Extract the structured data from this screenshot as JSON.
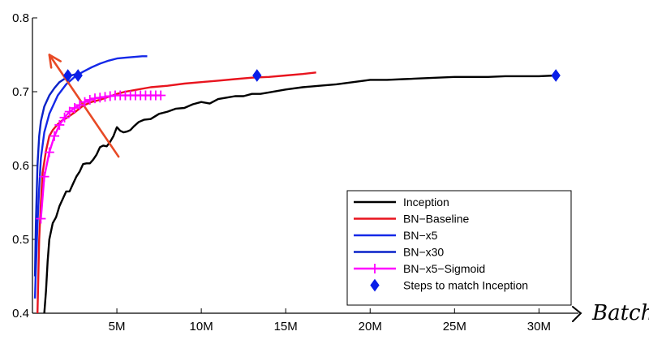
{
  "chart_data": {
    "type": "line",
    "xlim": [
      0,
      32
    ],
    "ylim": [
      0.4,
      0.8
    ],
    "x_unit_suffix": "M",
    "xticks": [
      5,
      10,
      15,
      20,
      25,
      30
    ],
    "xtick_labels": [
      "5M",
      "10M",
      "15M",
      "20M",
      "25M",
      "30M"
    ],
    "yticks": [
      0.4,
      0.5,
      0.6,
      0.7,
      0.8
    ],
    "ytick_labels": [
      "0.4",
      "0.5",
      "0.6",
      "0.7",
      "0.8"
    ],
    "x_axis_annotation": "Batch",
    "legend_position": "bottom-right",
    "series": [
      {
        "name": "Inception",
        "color": "#000000",
        "marker": "none",
        "x": [
          0.7,
          0.8,
          0.9,
          1.0,
          1.2,
          1.4,
          1.6,
          1.8,
          2.0,
          2.2,
          2.4,
          2.6,
          2.8,
          3.0,
          3.2,
          3.4,
          3.6,
          3.8,
          4.0,
          4.2,
          4.4,
          4.6,
          4.8,
          5.0,
          5.2,
          5.4,
          5.6,
          5.8,
          6.0,
          6.3,
          6.6,
          7.0,
          7.5,
          8.0,
          8.5,
          9.0,
          9.5,
          10.0,
          10.5,
          11.0,
          11.5,
          12.0,
          12.5,
          13.0,
          13.5,
          14.0,
          15.0,
          16.0,
          17.0,
          18.0,
          19.0,
          20.0,
          21.0,
          22.0,
          23.0,
          24.0,
          25.0,
          26.0,
          27.0,
          28.0,
          29.0,
          30.0,
          31.0
        ],
        "y": [
          0.4,
          0.43,
          0.47,
          0.5,
          0.522,
          0.53,
          0.545,
          0.555,
          0.565,
          0.565,
          0.575,
          0.585,
          0.592,
          0.602,
          0.603,
          0.603,
          0.608,
          0.615,
          0.625,
          0.627,
          0.626,
          0.632,
          0.64,
          0.652,
          0.647,
          0.645,
          0.646,
          0.648,
          0.653,
          0.659,
          0.662,
          0.663,
          0.67,
          0.673,
          0.677,
          0.678,
          0.683,
          0.686,
          0.684,
          0.69,
          0.692,
          0.694,
          0.694,
          0.697,
          0.697,
          0.699,
          0.703,
          0.706,
          0.708,
          0.71,
          0.713,
          0.716,
          0.716,
          0.717,
          0.718,
          0.719,
          0.72,
          0.72,
          0.72,
          0.721,
          0.721,
          0.721,
          0.722
        ]
      },
      {
        "name": "BN−Baseline",
        "color": "#e8141e",
        "marker": "none",
        "x": [
          0.3,
          0.4,
          0.5,
          0.6,
          0.8,
          1.0,
          1.2,
          1.5,
          1.8,
          2.0,
          2.5,
          3.0,
          3.5,
          4.0,
          4.5,
          5.0,
          5.5,
          6.0,
          7.0,
          8.0,
          9.0,
          10.0,
          11.0,
          12.0,
          13.0,
          14.0,
          15.0,
          16.0,
          16.8
        ],
        "y": [
          0.4,
          0.5,
          0.55,
          0.59,
          0.62,
          0.64,
          0.648,
          0.656,
          0.662,
          0.664,
          0.672,
          0.681,
          0.686,
          0.689,
          0.693,
          0.697,
          0.7,
          0.702,
          0.706,
          0.708,
          0.711,
          0.713,
          0.715,
          0.717,
          0.719,
          0.72,
          0.722,
          0.724,
          0.726
        ]
      },
      {
        "name": "BN−x5",
        "color": "#1428e8",
        "marker": "none",
        "x": [
          0.15,
          0.2,
          0.3,
          0.4,
          0.5,
          0.7,
          1.0,
          1.5,
          2.0,
          2.5,
          3.0,
          3.5,
          4.0,
          4.5,
          5.0,
          5.5,
          6.0,
          6.5,
          6.8
        ],
        "y": [
          0.42,
          0.46,
          0.52,
          0.57,
          0.61,
          0.645,
          0.67,
          0.695,
          0.71,
          0.72,
          0.727,
          0.733,
          0.738,
          0.742,
          0.745,
          0.746,
          0.747,
          0.748,
          0.748
        ]
      },
      {
        "name": "BN−x30",
        "color": "#0a22c8",
        "marker": "none",
        "x": [
          0.15,
          0.2,
          0.3,
          0.4,
          0.5,
          0.7,
          1.0,
          1.3,
          1.6,
          2.0,
          2.3,
          2.6
        ],
        "y": [
          0.45,
          0.52,
          0.6,
          0.64,
          0.66,
          0.68,
          0.695,
          0.705,
          0.713,
          0.719,
          0.722,
          0.724
        ]
      },
      {
        "name": "BN−x5−Sigmoid",
        "color": "#ff00ff",
        "marker": "plus",
        "x": [
          0.5,
          0.7,
          1.0,
          1.3,
          1.6,
          1.9,
          2.2,
          2.5,
          2.8,
          3.1,
          3.4,
          3.7,
          4.0,
          4.3,
          4.6,
          4.9,
          5.2,
          5.5,
          5.8,
          6.1,
          6.4,
          6.7,
          7.0,
          7.3,
          7.6
        ],
        "y": [
          0.528,
          0.585,
          0.618,
          0.64,
          0.655,
          0.665,
          0.673,
          0.678,
          0.682,
          0.686,
          0.689,
          0.691,
          0.692,
          0.693,
          0.694,
          0.695,
          0.695,
          0.695,
          0.695,
          0.695,
          0.695,
          0.695,
          0.695,
          0.695,
          0.695
        ]
      },
      {
        "name": "Steps to match Inception",
        "color": "#0a1ee8",
        "marker": "diamond",
        "line": false,
        "x": [
          2.1,
          2.7,
          13.3,
          31.0
        ],
        "y": [
          0.722,
          0.722,
          0.722,
          0.722
        ]
      }
    ],
    "annotations": [
      {
        "type": "arrow",
        "color": "#e84a26",
        "from": [
          5.1,
          0.612
        ],
        "to": [
          1.0,
          0.75
        ]
      }
    ]
  }
}
